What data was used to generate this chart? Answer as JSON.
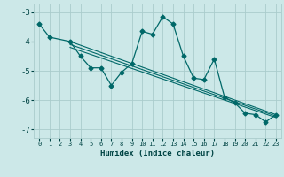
{
  "xlabel": "Humidex (Indice chaleur)",
  "xlim": [
    -0.5,
    23.5
  ],
  "ylim": [
    -7.3,
    -2.7
  ],
  "yticks": [
    -7,
    -6,
    -5,
    -4,
    -3
  ],
  "xticks": [
    0,
    1,
    2,
    3,
    4,
    5,
    6,
    7,
    8,
    9,
    10,
    11,
    12,
    13,
    14,
    15,
    16,
    17,
    18,
    19,
    20,
    21,
    22,
    23
  ],
  "bg_color": "#cce8e8",
  "grid_color": "#aacccc",
  "line_color": "#006868",
  "main_series": [
    [
      0,
      -3.4
    ],
    [
      1,
      -3.85
    ],
    [
      3,
      -4.0
    ],
    [
      4,
      -4.5
    ],
    [
      5,
      -4.9
    ],
    [
      6,
      -4.9
    ],
    [
      7,
      -5.5
    ],
    [
      8,
      -5.05
    ],
    [
      9,
      -4.75
    ],
    [
      10,
      -3.65
    ],
    [
      11,
      -3.75
    ],
    [
      12,
      -3.15
    ],
    [
      13,
      -3.4
    ],
    [
      14,
      -4.5
    ],
    [
      15,
      -5.25
    ],
    [
      16,
      -5.3
    ],
    [
      17,
      -4.6
    ],
    [
      18,
      -5.9
    ],
    [
      19,
      -6.1
    ],
    [
      20,
      -6.45
    ],
    [
      21,
      -6.5
    ],
    [
      22,
      -6.75
    ],
    [
      23,
      -6.5
    ]
  ],
  "linear_series": [
    [
      [
        3,
        -4.0
      ],
      [
        23,
        -6.5
      ]
    ],
    [
      [
        3,
        -4.1
      ],
      [
        23,
        -6.55
      ]
    ],
    [
      [
        3,
        -4.2
      ],
      [
        23,
        -6.6
      ]
    ]
  ]
}
